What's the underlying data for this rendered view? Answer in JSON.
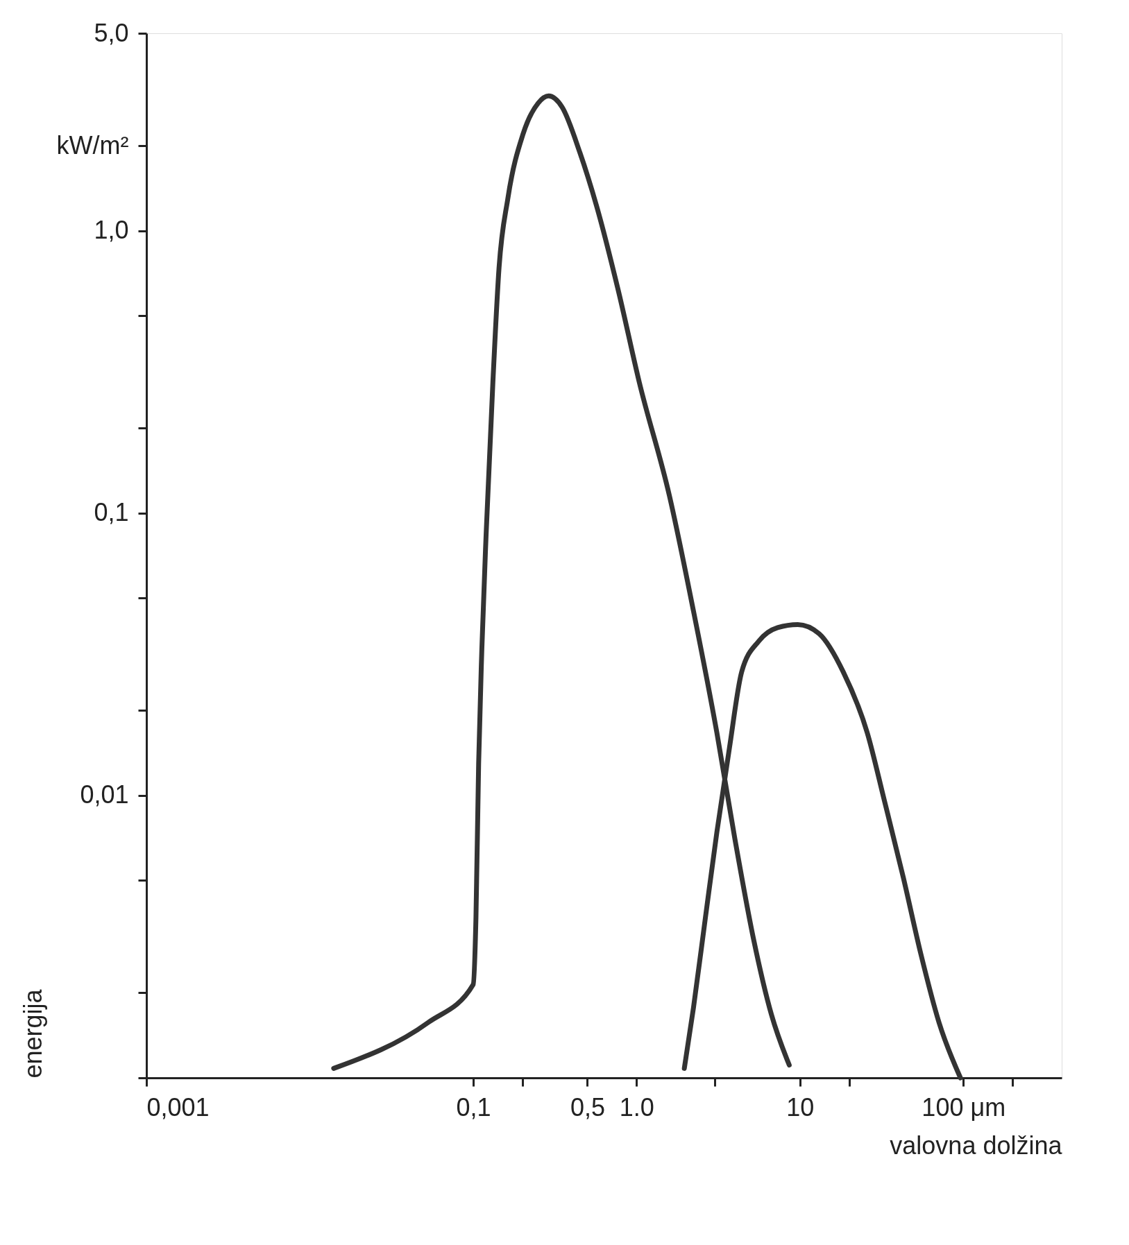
{
  "chart_data": {
    "type": "line",
    "xlabel": "valovna dolžina",
    "ylabel": "energija",
    "log": "xy",
    "grid": false,
    "legend": false,
    "marker": "none",
    "line_style": "solid",
    "xlim": [
      0.001,
      400
    ],
    "ylim": [
      0.001,
      5
    ],
    "xticks": [
      {
        "value": 0.001,
        "label": "0,001"
      },
      {
        "value": 0.1,
        "label": "0,1"
      },
      {
        "value": 0.2,
        "label": null
      },
      {
        "value": 0.5,
        "label": "0,5"
      },
      {
        "value": 1,
        "label": "1.0"
      },
      {
        "value": 3,
        "label": null
      },
      {
        "value": 10,
        "label": "10"
      },
      {
        "value": 20,
        "label": null
      },
      {
        "value": 100,
        "label": "100 μm"
      },
      {
        "value": 200,
        "label": null
      }
    ],
    "yticks": [
      {
        "value": 0.001,
        "label": null
      },
      {
        "value": 0.002,
        "label": null
      },
      {
        "value": 0.005,
        "label": null
      },
      {
        "value": 0.01,
        "label": "0,01"
      },
      {
        "value": 0.02,
        "label": null
      },
      {
        "value": 0.05,
        "label": null
      },
      {
        "value": 0.1,
        "label": "0,1"
      },
      {
        "value": 0.2,
        "label": null
      },
      {
        "value": 0.5,
        "label": null
      },
      {
        "value": 1,
        "label": "1,0"
      },
      {
        "value": 2,
        "label": "kW/m²"
      },
      {
        "value": 5,
        "label": "5,0"
      }
    ],
    "series": [
      {
        "color": "#333333",
        "x": [
          0.014,
          0.053,
          0.1,
          0.104,
          0.108,
          0.113,
          0.12,
          0.132,
          0.144,
          0.163,
          0.202,
          0.25,
          0.29,
          0.35,
          0.45,
          0.57,
          0.77,
          1.04,
          1.59,
          2.23,
          3.1,
          4.0,
          5.2,
          6.7,
          8.6
        ],
        "values": [
          0.00108,
          0.00157,
          0.00214,
          0.0037,
          0.013,
          0.033,
          0.084,
          0.29,
          0.74,
          1.3,
          2.2,
          2.83,
          3.0,
          2.74,
          1.89,
          1.22,
          0.62,
          0.29,
          0.115,
          0.045,
          0.0167,
          0.007,
          0.0031,
          0.00167,
          0.00111
        ]
      },
      {
        "color": "#333333",
        "x": [
          1.96,
          2.23,
          2.64,
          3.1,
          3.7,
          4.4,
          5.6,
          7.3,
          9.7,
          13.1,
          18.4,
          25.8,
          33,
          43,
          55,
          71,
          96
        ],
        "values": [
          0.00108,
          0.00177,
          0.0037,
          0.0074,
          0.0147,
          0.0274,
          0.0352,
          0.0393,
          0.0403,
          0.0374,
          0.0274,
          0.0167,
          0.0095,
          0.0051,
          0.00274,
          0.00157,
          0.001
        ]
      }
    ]
  }
}
